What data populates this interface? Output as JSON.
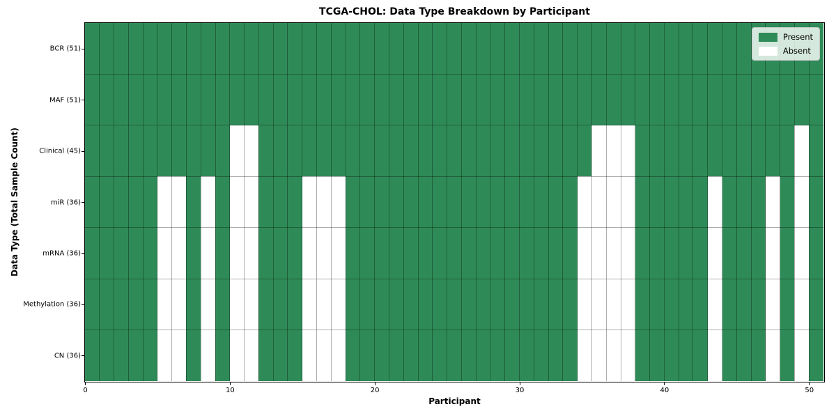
{
  "title": "TCGA-CHOL: Data Type Breakdown by Participant",
  "chart_data": {
    "type": "heatmap",
    "title": "TCGA-CHOL: Data Type Breakdown by Participant",
    "xlabel": "Participant",
    "ylabel": "Data Type (Total Sample Count)",
    "x_ticks": [
      0,
      10,
      20,
      30,
      40,
      50
    ],
    "x_range": [
      0,
      51
    ],
    "n_participants": 51,
    "grid": true,
    "rows": [
      {
        "label": "BCR (51)",
        "name": "BCR",
        "present_count": 51,
        "absent_participants": []
      },
      {
        "label": "MAF (51)",
        "name": "MAF",
        "present_count": 51,
        "absent_participants": []
      },
      {
        "label": "Clinical (45)",
        "name": "Clinical",
        "present_count": 45,
        "absent_participants": [
          10,
          11,
          35,
          36,
          37,
          49
        ]
      },
      {
        "label": "miR (36)",
        "name": "miR",
        "present_count": 36,
        "absent_participants": [
          5,
          6,
          8,
          10,
          11,
          15,
          16,
          17,
          34,
          35,
          36,
          37,
          43,
          47,
          49
        ]
      },
      {
        "label": "mRNA (36)",
        "name": "mRNA",
        "present_count": 36,
        "absent_participants": [
          5,
          6,
          8,
          10,
          11,
          15,
          16,
          17,
          34,
          35,
          36,
          37,
          43,
          47,
          49
        ]
      },
      {
        "label": "Methylation (36)",
        "name": "Methylation",
        "present_count": 36,
        "absent_participants": [
          5,
          6,
          8,
          10,
          11,
          15,
          16,
          17,
          34,
          35,
          36,
          37,
          43,
          47,
          49
        ]
      },
      {
        "label": "CN (36)",
        "name": "CN",
        "present_count": 36,
        "absent_participants": [
          5,
          6,
          8,
          10,
          11,
          15,
          16,
          17,
          34,
          35,
          36,
          37,
          43,
          47,
          49
        ]
      }
    ],
    "legend": {
      "position": "upper right",
      "entries": [
        {
          "label": "Present",
          "color": "#2e8b57"
        },
        {
          "label": "Absent",
          "color": "#ffffff"
        }
      ]
    },
    "colors": {
      "present": "#2e8b57",
      "absent": "#ffffff",
      "grid_line": "rgba(0,0,0,0.32)",
      "spine": "#000000",
      "figure_background": "#ffffff"
    }
  }
}
